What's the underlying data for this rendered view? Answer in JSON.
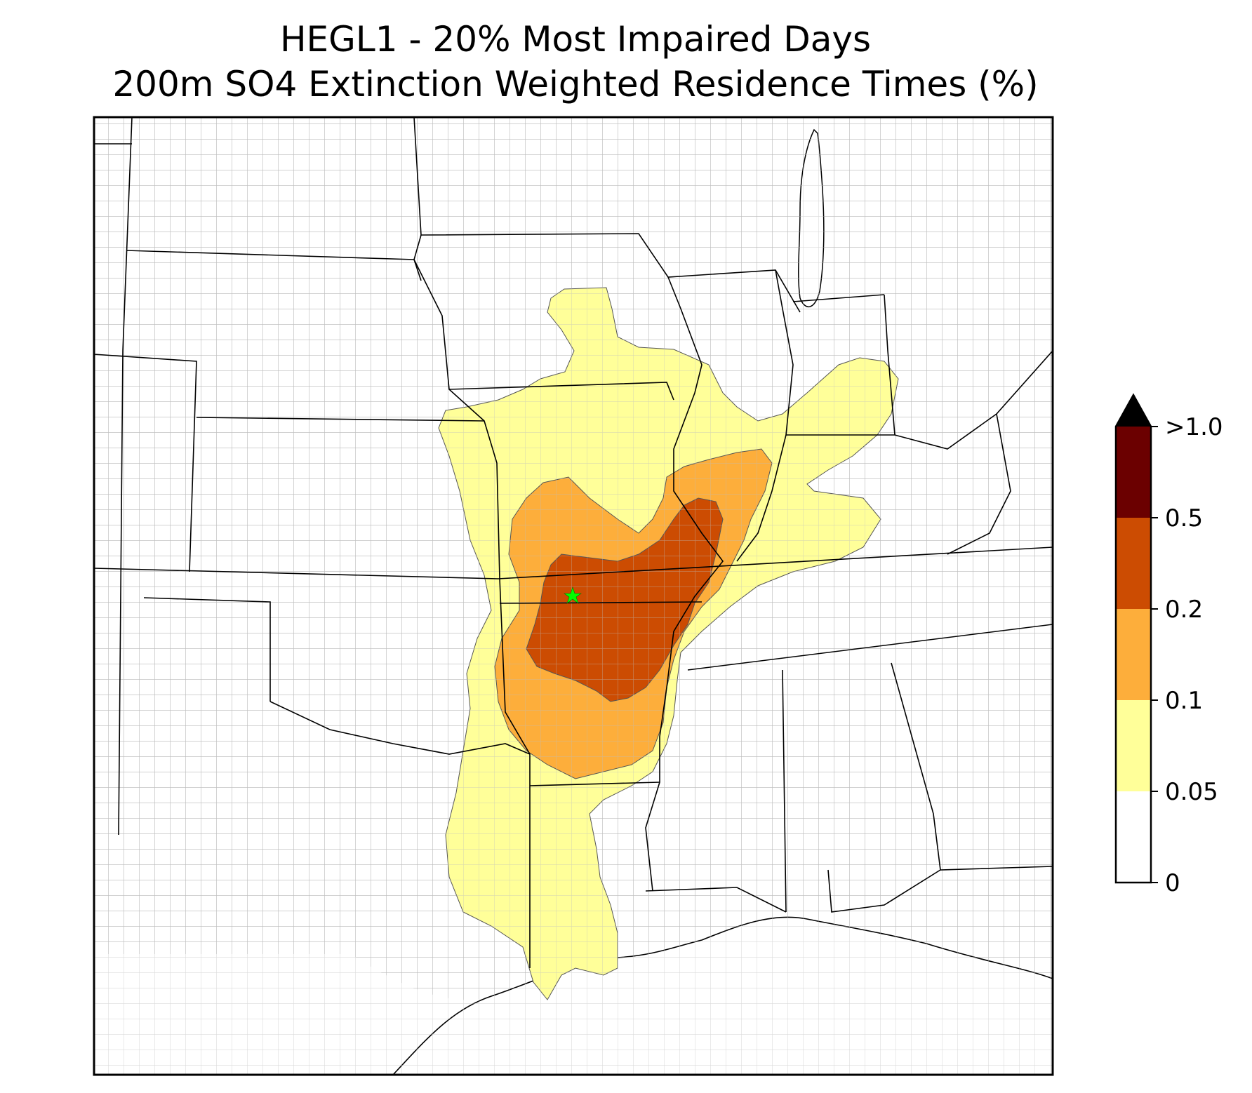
{
  "title": {
    "line1": "HEGL1 - 20% Most Impaired Days",
    "line2": "200m SO4 Extinction Weighted Residence Times (%)"
  },
  "colorbar": {
    "tick_labels": [
      "0",
      "0.05",
      "0.1",
      "0.2",
      "0.5",
      ">1.0"
    ],
    "bins": [
      {
        "from": "0",
        "to": "0.05",
        "color": "#ffffff"
      },
      {
        "from": "0.05",
        "to": "0.1",
        "color": "#ffff99"
      },
      {
        "from": "0.1",
        "to": "0.2",
        "color": "#fdae3b"
      },
      {
        "from": "0.2",
        "to": "0.5",
        "color": "#cc4c02"
      },
      {
        "from": "0.5",
        "to": "1.0",
        "color": "#6b0000"
      },
      {
        "from": "1.0",
        "to": "",
        "color": "#000000"
      }
    ],
    "extend": "max"
  },
  "map": {
    "marker": {
      "name": "HEGL1",
      "symbol": "star",
      "color": "#00ff00"
    },
    "line_colors": {
      "state": "#000000",
      "county": "#a6a6a6"
    }
  }
}
